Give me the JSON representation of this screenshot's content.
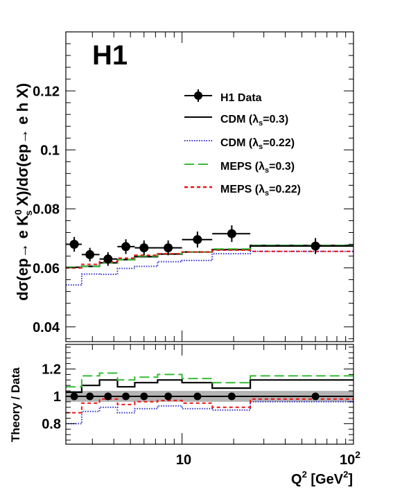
{
  "chart_data": [
    {
      "type": "scatter",
      "title": "H1",
      "ylabel": "dσ(ep→ e K0s X)/dσ(ep→ e h X)",
      "xlabel": "Q2 [GeV2]",
      "x_scale": "log",
      "xlim": [
        2.1,
        100
      ],
      "ylim": [
        0.035,
        0.14
      ],
      "y_ticks": [
        "0.04",
        "0.06",
        "0.08",
        "0.1",
        "0.12"
      ],
      "legend_position": "upper-right",
      "legend": [
        {
          "name": "H1 Data",
          "style": "marker"
        },
        {
          "name": "CDM   (λs=0.3)",
          "style": "solid"
        },
        {
          "name": "CDM   (λs=0.22)",
          "style": "dotted"
        },
        {
          "name": "MEPS (λs=0.3)",
          "style": "long-dash"
        },
        {
          "name": "MEPS (λs=0.22)",
          "style": "dash"
        }
      ],
      "data": [
        {
          "x": 2.35,
          "y": 0.068,
          "err": 0.0025,
          "xlo": 2.1,
          "xhi": 2.6
        },
        {
          "x": 2.9,
          "y": 0.0645,
          "err": 0.0023,
          "xlo": 2.6,
          "xhi": 3.3
        },
        {
          "x": 3.7,
          "y": 0.063,
          "err": 0.0023,
          "xlo": 3.3,
          "xhi": 4.2
        },
        {
          "x": 4.7,
          "y": 0.0672,
          "err": 0.0025,
          "xlo": 4.2,
          "xhi": 5.3
        },
        {
          "x": 6.0,
          "y": 0.0668,
          "err": 0.0025,
          "xlo": 5.3,
          "xhi": 7.2
        },
        {
          "x": 8.3,
          "y": 0.0668,
          "err": 0.0025,
          "xlo": 7.2,
          "xhi": 10.0
        },
        {
          "x": 12.3,
          "y": 0.0696,
          "err": 0.0027,
          "xlo": 10.0,
          "xhi": 15.0
        },
        {
          "x": 19.5,
          "y": 0.0716,
          "err": 0.0028,
          "xlo": 15.0,
          "xhi": 25.0
        },
        {
          "x": 60.0,
          "y": 0.0674,
          "err": 0.0027,
          "xlo": 25.0,
          "xhi": 100.0
        }
      ],
      "series": [
        {
          "name": "CDM   (λs=0.3)",
          "color": "#000000",
          "style": "solid",
          "edges": [
            2.1,
            2.6,
            3.3,
            4.2,
            5.3,
            7.2,
            10.0,
            15.0,
            25.0,
            100.0
          ],
          "values": [
            0.0602,
            0.0605,
            0.0617,
            0.0628,
            0.0638,
            0.0647,
            0.0654,
            0.0662,
            0.0676
          ]
        },
        {
          "name": "CDM   (λs=0.22)",
          "color": "#2b2bcc",
          "style": "dotted",
          "edges": [
            2.1,
            2.6,
            3.3,
            4.2,
            5.3,
            7.2,
            10.0,
            15.0,
            25.0,
            100.0
          ],
          "values": [
            0.0542,
            0.0579,
            0.0578,
            0.0598,
            0.0605,
            0.0621,
            0.0625,
            0.0648,
            0.0656
          ]
        },
        {
          "name": "MEPS (λs=0.3)",
          "color": "#33bb33",
          "style": "long-dash",
          "edges": [
            2.1,
            2.6,
            3.3,
            4.2,
            5.3,
            7.2,
            10.0,
            15.0,
            25.0,
            100.0
          ],
          "values": [
            0.0602,
            0.0605,
            0.0617,
            0.0628,
            0.064,
            0.0648,
            0.0654,
            0.0664,
            0.0676
          ]
        },
        {
          "name": "MEPS (λs=0.22)",
          "color": "#ee1111",
          "style": "dash",
          "edges": [
            2.1,
            2.6,
            3.3,
            4.2,
            5.3,
            7.2,
            10.0,
            15.0,
            25.0,
            100.0
          ],
          "values": [
            0.06,
            0.0612,
            0.0621,
            0.0633,
            0.0643,
            0.0648,
            0.0654,
            0.066,
            0.0656
          ]
        }
      ]
    },
    {
      "type": "line",
      "ylabel": "Theory / Data",
      "xlabel": "Q2 [GeV2]",
      "x_scale": "log",
      "xlim": [
        2.1,
        100
      ],
      "ylim": [
        0.65,
        1.38
      ],
      "y_ticks": [
        "0.8",
        "1",
        "1.2"
      ],
      "x_ticks": [
        "10",
        "102"
      ],
      "band": {
        "low": 0.96,
        "high": 1.04,
        "color": "#b4b4b4"
      },
      "points": [
        {
          "x": 2.35,
          "y": 1.0
        },
        {
          "x": 2.9,
          "y": 1.0
        },
        {
          "x": 3.7,
          "y": 1.0
        },
        {
          "x": 4.7,
          "y": 1.0
        },
        {
          "x": 6.0,
          "y": 1.0
        },
        {
          "x": 8.3,
          "y": 1.0
        },
        {
          "x": 12.3,
          "y": 1.0
        },
        {
          "x": 19.5,
          "y": 1.0
        },
        {
          "x": 60.0,
          "y": 1.0
        }
      ],
      "series": [
        {
          "name": "CDM   (λs=0.3)",
          "color": "#000000",
          "style": "solid",
          "edges": [
            2.1,
            2.6,
            3.3,
            4.2,
            5.3,
            7.2,
            10.0,
            15.0,
            25.0,
            100.0
          ],
          "values": [
            1.03,
            1.08,
            1.12,
            1.07,
            1.1,
            1.12,
            1.1,
            1.06,
            1.12
          ]
        },
        {
          "name": "CDM   (λs=0.22)",
          "color": "#2b2bcc",
          "style": "dotted",
          "edges": [
            2.1,
            2.6,
            3.3,
            4.2,
            5.3,
            7.2,
            10.0,
            15.0,
            25.0,
            100.0
          ],
          "values": [
            0.8,
            0.89,
            0.92,
            0.88,
            0.91,
            0.93,
            0.91,
            0.9,
            0.96
          ]
        },
        {
          "name": "MEPS (λs=0.3)",
          "color": "#33bb33",
          "style": "long-dash",
          "edges": [
            2.1,
            2.6,
            3.3,
            4.2,
            5.3,
            7.2,
            10.0,
            15.0,
            25.0,
            100.0
          ],
          "values": [
            1.07,
            1.15,
            1.17,
            1.12,
            1.14,
            1.16,
            1.13,
            1.1,
            1.15
          ]
        },
        {
          "name": "MEPS (λs=0.22)",
          "color": "#ee1111",
          "style": "dash",
          "edges": [
            2.1,
            2.6,
            3.3,
            4.2,
            5.3,
            7.2,
            10.0,
            15.0,
            25.0,
            100.0
          ],
          "values": [
            0.88,
            0.95,
            0.98,
            0.94,
            0.96,
            0.97,
            0.95,
            0.92,
            0.98
          ]
        }
      ]
    }
  ]
}
